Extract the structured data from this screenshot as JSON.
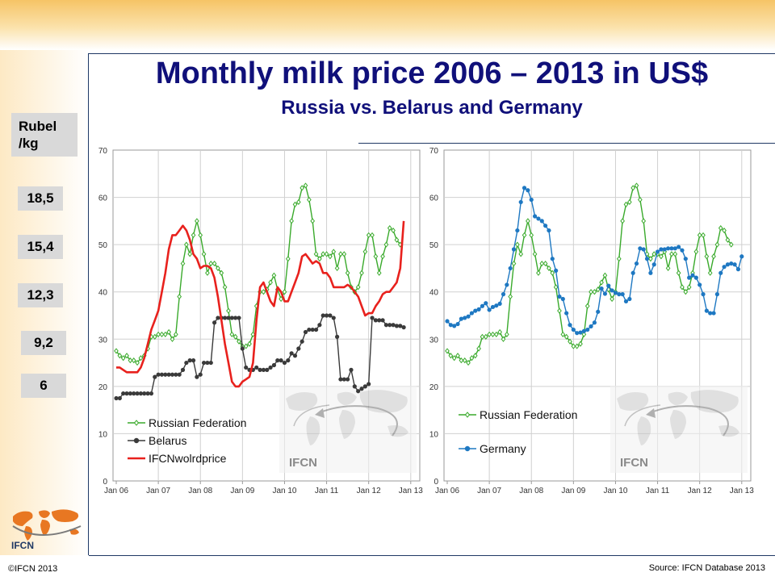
{
  "slide": {
    "title": "Monthly milk price 2006 – 2013 in US$",
    "subtitle": "Russia vs. Belarus and Germany",
    "rubel_label": "Rubel /kg",
    "rubel_values": [
      "18,5",
      "15,4",
      "12,3",
      "9,2",
      "6"
    ],
    "copyright": "©IFCN 2013",
    "source": "Source: IFCN Database 2013",
    "logo_text": "IFCN",
    "watermark_text": "IFCN",
    "colors": {
      "title": "#10107a",
      "russia": "#3aaa2c",
      "belarus": "#3a3a3a",
      "ifcn": "#e8211d",
      "germany": "#1e78c2"
    }
  },
  "chart_data": [
    {
      "type": "line",
      "title": "",
      "xlabel": "",
      "ylabel": "",
      "ylim": [
        0,
        70
      ],
      "yticks": [
        0,
        10,
        20,
        30,
        40,
        50,
        60,
        70
      ],
      "xticks": [
        "Jan 06",
        "Jan 07",
        "Jan 08",
        "Jan 09",
        "Jan 10",
        "Jan 11",
        "Jan 12",
        "Jan 13"
      ],
      "grid": true,
      "legend": "bottom-left",
      "x_start": "2006-01",
      "series": [
        {
          "name": "Russian Federation",
          "color": "#3aaa2c",
          "marker": "open-diamond",
          "values": [
            27.5,
            26.5,
            26,
            26.5,
            25.5,
            25.5,
            25,
            26,
            26.5,
            28,
            30.5,
            30.5,
            31,
            31,
            31,
            31.5,
            30,
            31,
            39,
            46,
            50,
            48,
            52,
            55,
            52,
            48,
            44,
            46,
            46,
            45,
            44,
            41,
            36,
            31,
            30.5,
            29.5,
            28.5,
            28.5,
            29,
            31,
            37,
            40,
            40,
            40.5,
            42,
            43.5,
            40.5,
            38.5,
            40,
            47,
            55,
            58.5,
            59,
            62,
            62.5,
            59.5,
            55,
            48,
            47,
            48,
            48,
            47.5,
            48.5,
            45,
            48,
            48,
            44,
            41,
            40,
            41,
            44,
            48.5,
            52,
            52,
            47.5,
            44,
            47.5,
            50,
            53.5,
            53,
            51,
            50
          ]
        },
        {
          "name": "Belarus",
          "color": "#3a3a3a",
          "marker": "dot",
          "values": [
            17.5,
            17.5,
            18.5,
            18.5,
            18.5,
            18.5,
            18.5,
            18.5,
            18.5,
            18.5,
            18.5,
            22,
            22.5,
            22.5,
            22.5,
            22.5,
            22.5,
            22.5,
            22.5,
            23.5,
            25,
            25.5,
            25.5,
            22,
            22.5,
            25,
            25,
            25,
            33.5,
            34.5,
            34.5,
            34.5,
            34.5,
            34.5,
            34.5,
            34.5,
            28,
            24,
            23.5,
            23.5,
            24,
            23.5,
            23.5,
            23.5,
            24,
            24.5,
            25.5,
            25.5,
            25,
            25.5,
            27,
            26.5,
            28,
            29.5,
            31.5,
            32,
            32,
            32,
            33,
            35,
            35,
            35,
            34.5,
            30.5,
            21.5,
            21.5,
            21.5,
            23.5,
            20,
            19,
            19.5,
            20,
            20.5,
            34.5,
            34,
            34,
            34,
            33,
            33,
            33,
            32.8,
            32.8,
            32.5
          ]
        },
        {
          "name": "IFCNwolrdprice",
          "color": "#e8211d",
          "marker": "none",
          "values": [
            24,
            24,
            23.5,
            23,
            23,
            23,
            23,
            24,
            26,
            29,
            32,
            34,
            36,
            40,
            44,
            49,
            52,
            52,
            53,
            54,
            53,
            51,
            48,
            47,
            45,
            45.5,
            45.5,
            45,
            43,
            39,
            34,
            29,
            25,
            21,
            20,
            20,
            21,
            21.5,
            22,
            25,
            34,
            41,
            42,
            40,
            38,
            37,
            41,
            40,
            38,
            38,
            40,
            42,
            44,
            47.5,
            48,
            47,
            46,
            46.5,
            46,
            44,
            44,
            43,
            41,
            41,
            41,
            41,
            41.5,
            41,
            40,
            39,
            37,
            35,
            35.5,
            35.5,
            37,
            38,
            39.5,
            40,
            40,
            41,
            42,
            45,
            55
          ]
        }
      ]
    },
    {
      "type": "line",
      "title": "",
      "xlabel": "",
      "ylabel": "",
      "ylim": [
        0,
        70
      ],
      "yticks": [
        0,
        10,
        20,
        30,
        40,
        50,
        60,
        70
      ],
      "xticks": [
        "Jan 06",
        "Jan 07",
        "Jan 08",
        "Jan 09",
        "Jan 10",
        "Jan 11",
        "Jan 12",
        "Jan 13"
      ],
      "grid": true,
      "legend": "bottom-left",
      "x_start": "2006-01",
      "series": [
        {
          "name": "Russian Federation",
          "color": "#3aaa2c",
          "marker": "open-diamond",
          "values": [
            27.5,
            26.5,
            26,
            26.5,
            25.5,
            25.5,
            25,
            26,
            26.5,
            28,
            30.5,
            30.5,
            31,
            31,
            31,
            31.5,
            30,
            31,
            39,
            46,
            50,
            48,
            52,
            55,
            52,
            48,
            44,
            46,
            46,
            45,
            44,
            41,
            36,
            31,
            30.5,
            29.5,
            28.5,
            28.5,
            29,
            31,
            37,
            40,
            40,
            40.5,
            42,
            43.5,
            40.5,
            38.5,
            40,
            47,
            55,
            58.5,
            59,
            62,
            62.5,
            59.5,
            55,
            48,
            47,
            48,
            48,
            47.5,
            48.5,
            45,
            48,
            48,
            44,
            41,
            40,
            41,
            44,
            48.5,
            52,
            52,
            47.5,
            44,
            47.5,
            50,
            53.5,
            53,
            51,
            50
          ]
        },
        {
          "name": "Germany",
          "color": "#1e78c2",
          "marker": "dot",
          "values": [
            33.8,
            33,
            32.8,
            33.2,
            34.3,
            34.5,
            34.8,
            35.5,
            36,
            36.3,
            37,
            37.6,
            36.2,
            36.8,
            37.1,
            37.5,
            39.5,
            41.5,
            45,
            49,
            53,
            59,
            62,
            61.5,
            59.5,
            56,
            55.5,
            55,
            54,
            53,
            47,
            44.5,
            39,
            38.5,
            35.5,
            33,
            32,
            31.3,
            31.4,
            31.7,
            32,
            32.7,
            33.5,
            35.8,
            40.7,
            39.6,
            41.3,
            40.3,
            39.8,
            39.5,
            39.5,
            38,
            38.5,
            44,
            46,
            49.2,
            49,
            47,
            44,
            45.8,
            48.5,
            49,
            49,
            49.2,
            49.2,
            49.2,
            49.5,
            48.8,
            47,
            43,
            43.5,
            43,
            41.5,
            39.5,
            36,
            35.5,
            35.5,
            39.5,
            44,
            45.3,
            45.8,
            46,
            45.8,
            44.8,
            47.5
          ]
        }
      ]
    }
  ]
}
